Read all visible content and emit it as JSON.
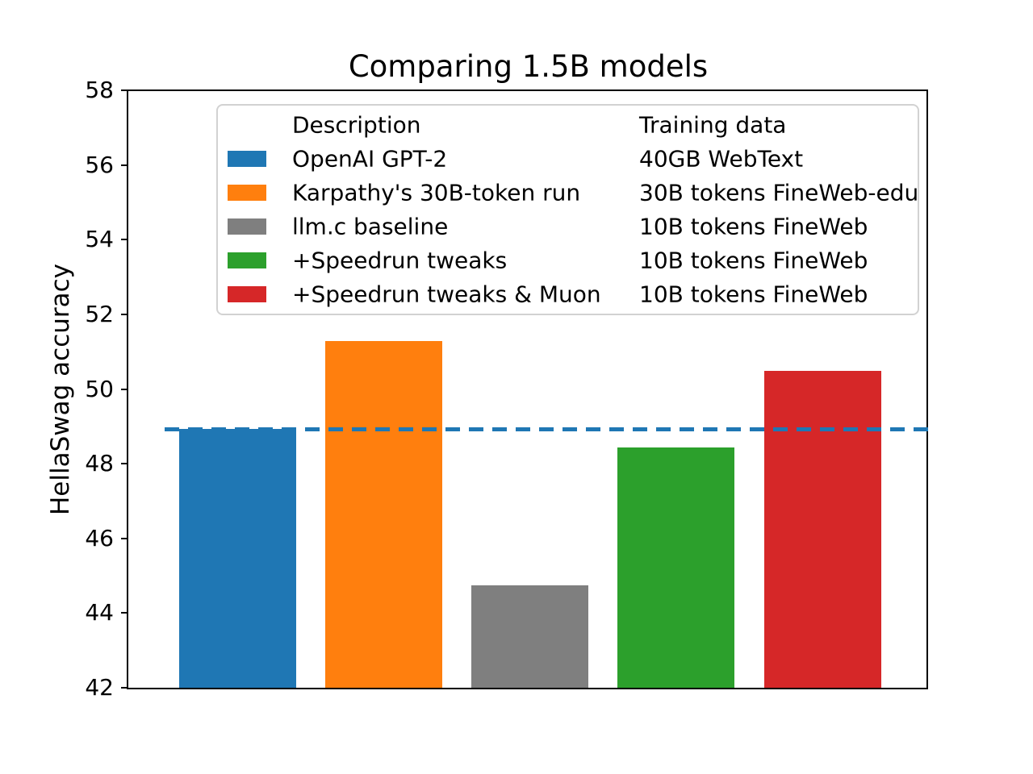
{
  "figure": {
    "title": "Comparing 1.5B models",
    "ylabel": "HellaSwag accuracy"
  },
  "chart_data": {
    "type": "bar",
    "title": "Comparing 1.5B models",
    "xlabel": "",
    "ylabel": "HellaSwag accuracy",
    "ylim": [
      42,
      58
    ],
    "yticks": [
      42,
      44,
      46,
      48,
      50,
      52,
      54,
      56,
      58
    ],
    "grid": false,
    "categories": [
      "OpenAI GPT-2",
      "Karpathy's 30B-token run",
      "llm.c baseline",
      "+Speedrun tweaks",
      "+Speedrun tweaks & Muon"
    ],
    "values": [
      48.93,
      51.3,
      44.75,
      48.45,
      50.5
    ],
    "bar_colors": [
      "#1f77b4",
      "#ff7f0e",
      "#7f7f7f",
      "#2ca02c",
      "#d62728"
    ],
    "legend": {
      "position": "upper center, inside plot",
      "headers": [
        "Description",
        "Training data"
      ],
      "training_data": [
        "40GB WebText",
        "30B tokens FineWeb-edu",
        "10B tokens FineWeb",
        "10B tokens FineWeb",
        "10B tokens FineWeb"
      ]
    },
    "reference_line": {
      "value": 48.93,
      "orientation": "horizontal",
      "style": "dashed",
      "color": "#1f77b4"
    }
  }
}
